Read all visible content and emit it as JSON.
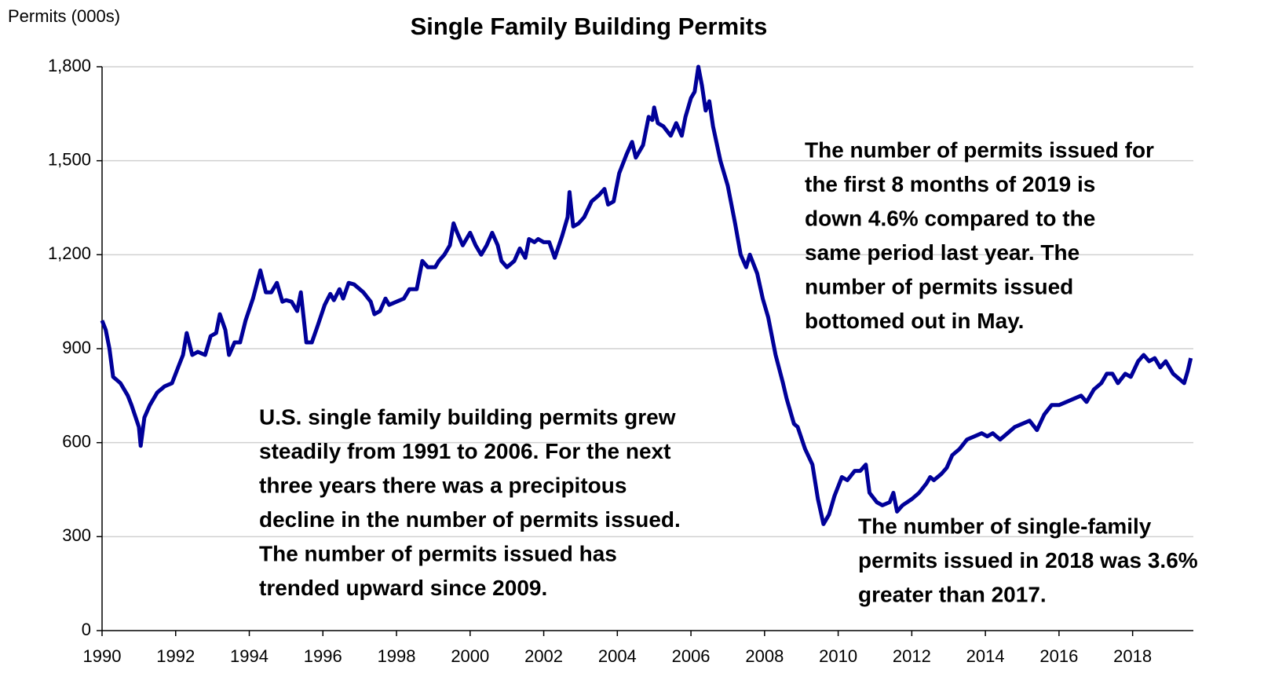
{
  "chart_data": {
    "type": "line",
    "title": "Single Family Building Permits",
    "y_label": "Permits (000s)",
    "xlim": [
      1990,
      2019.65
    ],
    "xticks": [
      1990,
      1992,
      1994,
      1996,
      1998,
      2000,
      2002,
      2004,
      2006,
      2008,
      2010,
      2012,
      2014,
      2016,
      2018
    ],
    "ylim": [
      0,
      1800
    ],
    "yticks": [
      0,
      300,
      600,
      900,
      {
        "value": 1200,
        "label": "1,200"
      },
      {
        "value": 1500,
        "label": "1,500"
      },
      {
        "value": 1800,
        "label": "1,800"
      }
    ],
    "grid": true,
    "annotations": [
      [
        "U.S. single family building permits grew",
        "steadily from 1991 to 2006. For the next",
        "three years there was a precipitous",
        "decline in the number of permits issued.",
        "The number of permits issued has",
        "trended upward since 2009."
      ],
      [
        "The number of permits issued for",
        "the first 8 months of 2019 is",
        "down 4.6% compared to the",
        "same period last year. The",
        "number of permits issued",
        "bottomed out in May."
      ],
      [
        "The number of single-family",
        "permits issued in 2018 was 3.6%",
        "greater than 2017."
      ]
    ],
    "x": [
      1990.0,
      1990.1,
      1990.2,
      1990.3,
      1990.5,
      1990.7,
      1990.8,
      1991.0,
      1991.05,
      1991.15,
      1991.3,
      1991.5,
      1991.7,
      1991.9,
      1992.1,
      1992.2,
      1992.3,
      1992.45,
      1992.6,
      1992.8,
      1992.95,
      1993.1,
      1993.2,
      1993.35,
      1993.45,
      1993.6,
      1993.75,
      1993.9,
      1994.1,
      1994.3,
      1994.45,
      1994.6,
      1994.75,
      1994.9,
      1995.0,
      1995.15,
      1995.3,
      1995.4,
      1995.55,
      1995.7,
      1995.85,
      1996.05,
      1996.2,
      1996.3,
      1996.45,
      1996.55,
      1996.7,
      1996.85,
      1997.1,
      1997.3,
      1997.4,
      1997.55,
      1997.7,
      1997.8,
      1998.0,
      1998.2,
      1998.35,
      1998.55,
      1998.7,
      1998.85,
      1999.05,
      1999.15,
      1999.3,
      1999.45,
      1999.55,
      1999.65,
      1999.8,
      2000.0,
      2000.15,
      2000.3,
      2000.45,
      2000.6,
      2000.75,
      2000.85,
      2001.0,
      2001.2,
      2001.35,
      2001.5,
      2001.6,
      2001.75,
      2001.85,
      2002.0,
      2002.15,
      2002.3,
      2002.5,
      2002.65,
      2002.7,
      2002.8,
      2002.95,
      2003.1,
      2003.3,
      2003.5,
      2003.65,
      2003.75,
      2003.9,
      2004.05,
      2004.25,
      2004.4,
      2004.5,
      2004.7,
      2004.85,
      2004.95,
      2005.0,
      2005.1,
      2005.25,
      2005.45,
      2005.6,
      2005.75,
      2005.85,
      2006.0,
      2006.1,
      2006.2,
      2006.3,
      2006.4,
      2006.5,
      2006.6,
      2006.8,
      2007.0,
      2007.2,
      2007.35,
      2007.5,
      2007.6,
      2007.8,
      2007.95,
      2008.1,
      2008.3,
      2008.5,
      2008.6,
      2008.8,
      2008.9,
      2009.1,
      2009.3,
      2009.45,
      2009.6,
      2009.75,
      2009.9,
      2010.1,
      2010.25,
      2010.45,
      2010.6,
      2010.75,
      2010.85,
      2011.05,
      2011.2,
      2011.4,
      2011.5,
      2011.6,
      2011.75,
      2012.0,
      2012.2,
      2012.4,
      2012.5,
      2012.6,
      2012.8,
      2012.95,
      2013.1,
      2013.3,
      2013.5,
      2013.7,
      2013.9,
      2014.05,
      2014.2,
      2014.4,
      2014.6,
      2014.8,
      2015.0,
      2015.2,
      2015.4,
      2015.6,
      2015.8,
      2016.0,
      2016.2,
      2016.4,
      2016.6,
      2016.75,
      2016.95,
      2017.15,
      2017.3,
      2017.45,
      2017.6,
      2017.8,
      2017.95,
      2018.15,
      2018.3,
      2018.45,
      2018.6,
      2018.75,
      2018.9,
      2019.1,
      2019.3,
      2019.4,
      2019.5,
      2019.58
    ],
    "series": [
      {
        "name": "Single family permits",
        "color": "#000099",
        "values": [
          990,
          960,
          900,
          810,
          790,
          750,
          720,
          650,
          590,
          680,
          720,
          760,
          780,
          790,
          850,
          880,
          950,
          880,
          890,
          880,
          940,
          950,
          1010,
          960,
          880,
          920,
          920,
          990,
          1060,
          1150,
          1080,
          1080,
          1110,
          1050,
          1055,
          1050,
          1020,
          1080,
          920,
          920,
          970,
          1040,
          1075,
          1055,
          1090,
          1060,
          1110,
          1105,
          1080,
          1050,
          1010,
          1020,
          1060,
          1040,
          1050,
          1060,
          1090,
          1090,
          1180,
          1160,
          1160,
          1180,
          1200,
          1230,
          1300,
          1270,
          1230,
          1270,
          1230,
          1200,
          1230,
          1270,
          1230,
          1180,
          1160,
          1180,
          1220,
          1190,
          1250,
          1240,
          1250,
          1240,
          1240,
          1190,
          1260,
          1320,
          1400,
          1290,
          1300,
          1320,
          1370,
          1390,
          1410,
          1360,
          1370,
          1460,
          1520,
          1560,
          1510,
          1550,
          1640,
          1630,
          1670,
          1620,
          1610,
          1580,
          1620,
          1580,
          1640,
          1700,
          1720,
          1800,
          1740,
          1660,
          1690,
          1610,
          1500,
          1420,
          1300,
          1200,
          1160,
          1200,
          1140,
          1060,
          1000,
          880,
          790,
          740,
          660,
          650,
          580,
          530,
          420,
          340,
          370,
          430,
          490,
          480,
          510,
          510,
          530,
          440,
          410,
          400,
          410,
          440,
          380,
          400,
          420,
          440,
          470,
          490,
          480,
          500,
          520,
          560,
          580,
          610,
          620,
          630,
          620,
          630,
          610,
          630,
          650,
          660,
          670,
          640,
          690,
          720,
          720,
          730,
          740,
          750,
          730,
          770,
          790,
          820,
          820,
          790,
          820,
          810,
          860,
          880,
          860,
          870,
          840,
          860,
          820,
          800,
          790,
          830,
          870
        ]
      }
    ]
  }
}
